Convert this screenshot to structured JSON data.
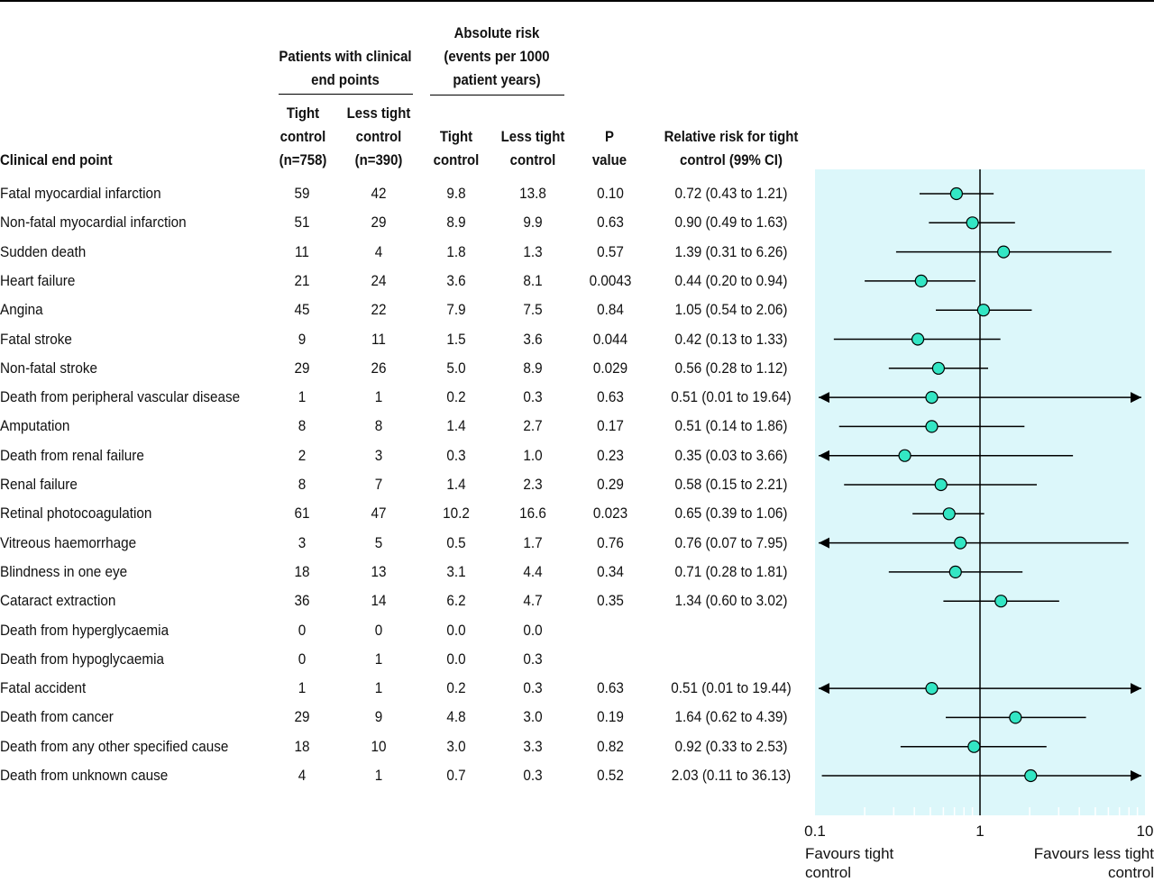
{
  "headers": {
    "endpoint": "Clinical end point",
    "patients_group": "Patients with clinical\nend points",
    "absolute_group": "Absolute risk\n(events per 1000\npatient years)",
    "tight_n": "Tight\ncontrol\n(n=758)",
    "less_n": "Less tight\ncontrol\n(n=390)",
    "tight_abs": "Tight\ncontrol",
    "less_abs": "Less tight\ncontrol",
    "pvalue": "P\nvalue",
    "rr": "Relative risk for tight\ncontrol (99% CI)"
  },
  "colors": {
    "panel": "#dcf7fa",
    "marker": "#33e6c4",
    "line": "#000000"
  },
  "axis": {
    "ticks": [
      "0.1",
      "1",
      "10"
    ],
    "left_label": "Favours tight\ncontrol",
    "right_label": "Favours less tight\ncontrol"
  },
  "chart_data": {
    "type": "forest",
    "scale": "log",
    "xlim": [
      0.1,
      10
    ],
    "reference": 1,
    "rows": [
      {
        "label": "Fatal myocardial infarction",
        "n_tight": "59",
        "n_less": "42",
        "abs_tight": "9.8",
        "abs_less": "13.8",
        "p": "0.10",
        "rr_text": "0.72 (0.43 to 1.21)",
        "rr": 0.72,
        "lo": 0.43,
        "hi": 1.21
      },
      {
        "label": "Non-fatal myocardial infarction",
        "n_tight": "51",
        "n_less": "29",
        "abs_tight": "8.9",
        "abs_less": "9.9",
        "p": "0.63",
        "rr_text": "0.90 (0.49 to 1.63)",
        "rr": 0.9,
        "lo": 0.49,
        "hi": 1.63
      },
      {
        "label": "Sudden death",
        "n_tight": "11",
        "n_less": "4",
        "abs_tight": "1.8",
        "abs_less": "1.3",
        "p": "0.57",
        "rr_text": "1.39 (0.31 to 6.26)",
        "rr": 1.39,
        "lo": 0.31,
        "hi": 6.26
      },
      {
        "label": "Heart failure",
        "n_tight": "21",
        "n_less": "24",
        "abs_tight": "3.6",
        "abs_less": "8.1",
        "p": "0.0043",
        "rr_text": "0.44 (0.20 to 0.94)",
        "rr": 0.44,
        "lo": 0.2,
        "hi": 0.94
      },
      {
        "label": "Angina",
        "n_tight": "45",
        "n_less": "22",
        "abs_tight": "7.9",
        "abs_less": "7.5",
        "p": "0.84",
        "rr_text": "1.05 (0.54 to 2.06)",
        "rr": 1.05,
        "lo": 0.54,
        "hi": 2.06
      },
      {
        "label": "Fatal stroke",
        "n_tight": "9",
        "n_less": "11",
        "abs_tight": "1.5",
        "abs_less": "3.6",
        "p": "0.044",
        "rr_text": "0.42 (0.13 to 1.33)",
        "rr": 0.42,
        "lo": 0.13,
        "hi": 1.33
      },
      {
        "label": "Non-fatal stroke",
        "n_tight": "29",
        "n_less": "26",
        "abs_tight": "5.0",
        "abs_less": "8.9",
        "p": "0.029",
        "rr_text": "0.56 (0.28 to 1.12)",
        "rr": 0.56,
        "lo": 0.28,
        "hi": 1.12
      },
      {
        "label": "Death from peripheral vascular disease",
        "n_tight": "1",
        "n_less": "1",
        "abs_tight": "0.2",
        "abs_less": "0.3",
        "p": "0.63",
        "rr_text": "0.51 (0.01 to 19.64)",
        "rr": 0.51,
        "lo": 0.01,
        "hi": 19.64
      },
      {
        "label": "Amputation",
        "n_tight": "8",
        "n_less": "8",
        "abs_tight": "1.4",
        "abs_less": "2.7",
        "p": "0.17",
        "rr_text": "0.51 (0.14 to 1.86)",
        "rr": 0.51,
        "lo": 0.14,
        "hi": 1.86
      },
      {
        "label": "Death from renal failure",
        "n_tight": "2",
        "n_less": "3",
        "abs_tight": "0.3",
        "abs_less": "1.0",
        "p": "0.23",
        "rr_text": "0.35 (0.03 to 3.66)",
        "rr": 0.35,
        "lo": 0.03,
        "hi": 3.66
      },
      {
        "label": "Renal failure",
        "n_tight": "8",
        "n_less": "7",
        "abs_tight": "1.4",
        "abs_less": "2.3",
        "p": "0.29",
        "rr_text": "0.58 (0.15 to 2.21)",
        "rr": 0.58,
        "lo": 0.15,
        "hi": 2.21
      },
      {
        "label": "Retinal photocoagulation",
        "n_tight": "61",
        "n_less": "47",
        "abs_tight": "10.2",
        "abs_less": "16.6",
        "p": "0.023",
        "rr_text": "0.65 (0.39 to 1.06)",
        "rr": 0.65,
        "lo": 0.39,
        "hi": 1.06
      },
      {
        "label": "Vitreous haemorrhage",
        "n_tight": "3",
        "n_less": "5",
        "abs_tight": "0.5",
        "abs_less": "1.7",
        "p": "0.76",
        "rr_text": "0.76 (0.07 to 7.95)",
        "rr": 0.76,
        "lo": 0.07,
        "hi": 7.95
      },
      {
        "label": "Blindness in one eye",
        "n_tight": "18",
        "n_less": "13",
        "abs_tight": "3.1",
        "abs_less": "4.4",
        "p": "0.34",
        "rr_text": "0.71 (0.28 to 1.81)",
        "rr": 0.71,
        "lo": 0.28,
        "hi": 1.81
      },
      {
        "label": "Cataract extraction",
        "n_tight": "36",
        "n_less": "14",
        "abs_tight": "6.2",
        "abs_less": "4.7",
        "p": "0.35",
        "rr_text": "1.34 (0.60 to 3.02)",
        "rr": 1.34,
        "lo": 0.6,
        "hi": 3.02
      },
      {
        "label": "Death from hyperglycaemia",
        "n_tight": "0",
        "n_less": "0",
        "abs_tight": "0.0",
        "abs_less": "0.0",
        "p": "",
        "rr_text": "",
        "rr": null,
        "lo": null,
        "hi": null
      },
      {
        "label": "Death from hypoglycaemia",
        "n_tight": "0",
        "n_less": "1",
        "abs_tight": "0.0",
        "abs_less": "0.3",
        "p": "",
        "rr_text": "",
        "rr": null,
        "lo": null,
        "hi": null
      },
      {
        "label": "Fatal accident",
        "n_tight": "1",
        "n_less": "1",
        "abs_tight": "0.2",
        "abs_less": "0.3",
        "p": "0.63",
        "rr_text": "0.51 (0.01 to 19.44)",
        "rr": 0.51,
        "lo": 0.01,
        "hi": 19.44
      },
      {
        "label": "Death from cancer",
        "n_tight": "29",
        "n_less": "9",
        "abs_tight": "4.8",
        "abs_less": "3.0",
        "p": "0.19",
        "rr_text": "1.64 (0.62 to 4.39)",
        "rr": 1.64,
        "lo": 0.62,
        "hi": 4.39
      },
      {
        "label": "Death from any other specified cause",
        "n_tight": "18",
        "n_less": "10",
        "abs_tight": "3.0",
        "abs_less": "3.3",
        "p": "0.82",
        "rr_text": "0.92 (0.33 to 2.53)",
        "rr": 0.92,
        "lo": 0.33,
        "hi": 2.53
      },
      {
        "label": "Death from unknown cause",
        "n_tight": "4",
        "n_less": "1",
        "abs_tight": "0.7",
        "abs_less": "0.3",
        "p": "0.52",
        "rr_text": "2.03 (0.11 to 36.13)",
        "rr": 2.03,
        "lo": 0.11,
        "hi": 36.13
      }
    ]
  }
}
